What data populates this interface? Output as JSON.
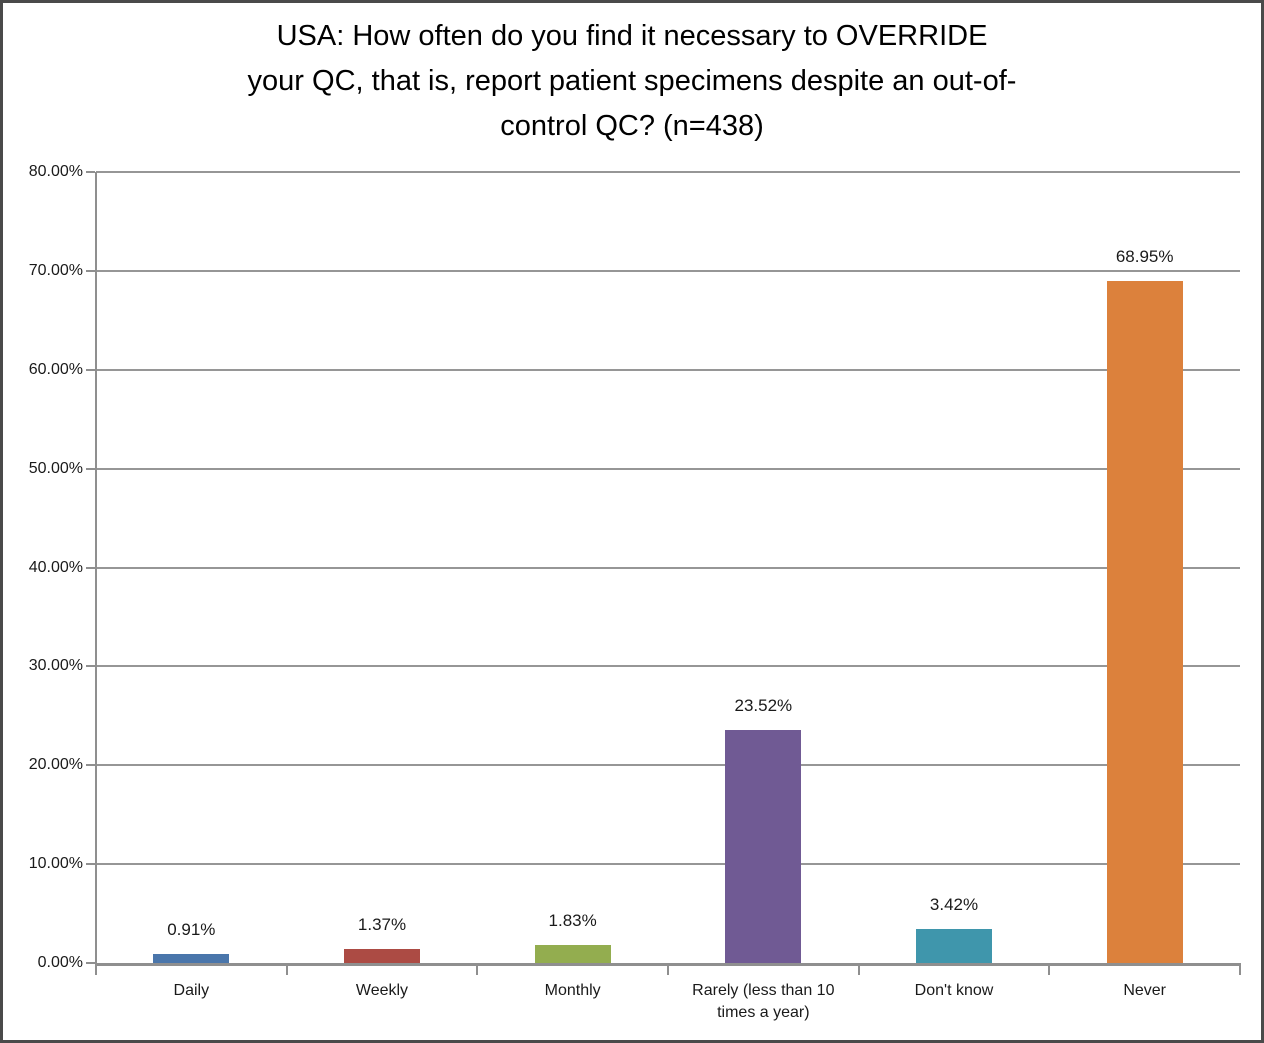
{
  "page": {
    "background": "#ffffff",
    "border_color": "#4a4a4a"
  },
  "chart_data": {
    "type": "bar",
    "title": "USA: How often do you find it necessary to OVERRIDE your QC, that is, report patient specimens despite an out-of-control QC? (n=438)",
    "title_lines": [
      "USA: How often do you find it necessary to OVERRIDE",
      "your QC, that is, report patient specimens despite an out-of-",
      "control QC? (n=438)"
    ],
    "categories": [
      "Daily",
      "Weekly",
      "Monthly",
      "Rarely (less than 10 times a year)",
      "Don't know",
      "Never"
    ],
    "values": [
      0.91,
      1.37,
      1.83,
      23.52,
      3.42,
      68.95
    ],
    "data_labels": [
      "0.91%",
      "1.37%",
      "1.83%",
      "23.52%",
      "3.42%",
      "68.95%"
    ],
    "bar_colors": [
      "#4a76ab",
      "#ac4b44",
      "#93ad4f",
      "#705a94",
      "#3f96ac",
      "#dc813c"
    ],
    "xlabel": "",
    "ylabel": "",
    "ylim": [
      0,
      80
    ],
    "ytick_interval": 10,
    "ytick_labels": [
      "0.00%",
      "10.00%",
      "20.00%",
      "30.00%",
      "40.00%",
      "50.00%",
      "60.00%",
      "70.00%",
      "80.00%"
    ],
    "grid": true,
    "legend": false,
    "gridline_color": "#969696",
    "axis_color": "#8f8f8f",
    "text_color": "#1a1a1a"
  }
}
